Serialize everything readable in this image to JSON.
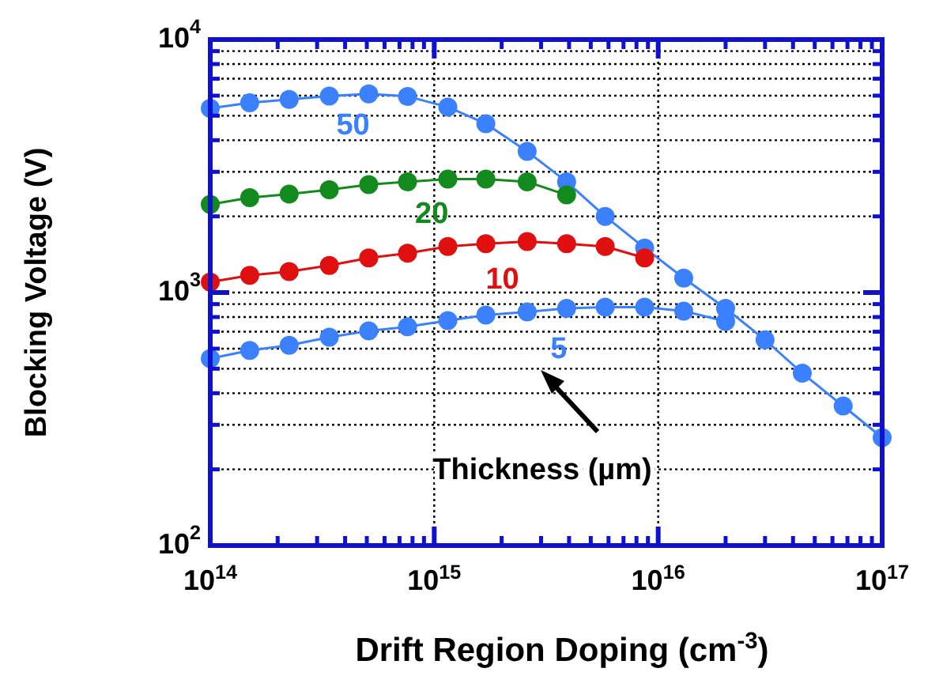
{
  "chart_data": {
    "type": "line",
    "xlabel": "Drift Region Doping (cm$^{-3}$)",
    "ylabel": "Blocking Voltage (V)",
    "log": "xy",
    "grid": true,
    "marker": "circle",
    "line_style": "solid",
    "xlim": [
      100000000000000.0,
      1e+17
    ],
    "ylim": [
      100,
      10000
    ],
    "xticks": [
      {
        "value": 100000000000000.0,
        "label": "10$^{14}$"
      },
      {
        "value": 1000000000000000.0,
        "label": "10$^{15}$"
      },
      {
        "value": 1e+16,
        "label": "10$^{16}$"
      },
      {
        "value": 1e+17,
        "label": "10$^{17}$"
      }
    ],
    "yticks": [
      {
        "value": 100,
        "label": "10$^{2}$"
      },
      {
        "value": 1000,
        "label": "10$^{3}$"
      },
      {
        "value": 10000,
        "label": "10$^{4}$"
      }
    ],
    "x": [
      100000000000000.0,
      150000000000000.0,
      225000000000000.0,
      340000000000000.0,
      510000000000000.0,
      760000000000000.0,
      1150000000000000.0,
      1700000000000000.0,
      2600000000000000.0,
      3900000000000000.0,
      5800000000000000.0,
      8700000000000000.0,
      1.3e+16,
      2e+16,
      3e+16,
      4.4e+16,
      6.7e+16,
      1e+17
    ],
    "series": [
      {
        "name": "50",
        "color": "#3a80ff",
        "values": [
          5350,
          5620,
          5800,
          5980,
          6100,
          5960,
          5410,
          4650,
          3610,
          2740,
          2000,
          1500,
          1140,
          866,
          650,
          480,
          356,
          267
        ]
      },
      {
        "name": "20",
        "color": "#138a1e",
        "values": [
          2230,
          2370,
          2450,
          2550,
          2670,
          2740,
          2810,
          2810,
          2740,
          2430,
          null,
          null,
          null,
          null,
          null,
          null,
          null,
          null
        ]
      },
      {
        "name": "10",
        "color": "#e01010",
        "values": [
          1100,
          1170,
          1210,
          1280,
          1370,
          1430,
          1520,
          1560,
          1590,
          1560,
          1520,
          1370,
          null,
          null,
          null,
          null,
          null,
          null
        ]
      },
      {
        "name": "5",
        "color": "#3a80ff",
        "values": [
          548,
          590,
          619,
          666,
          705,
          732,
          775,
          814,
          838,
          866,
          875,
          875,
          845,
          769,
          null,
          null,
          null,
          null
        ]
      }
    ],
    "annotations": [
      "Thickness (µm)"
    ]
  }
}
